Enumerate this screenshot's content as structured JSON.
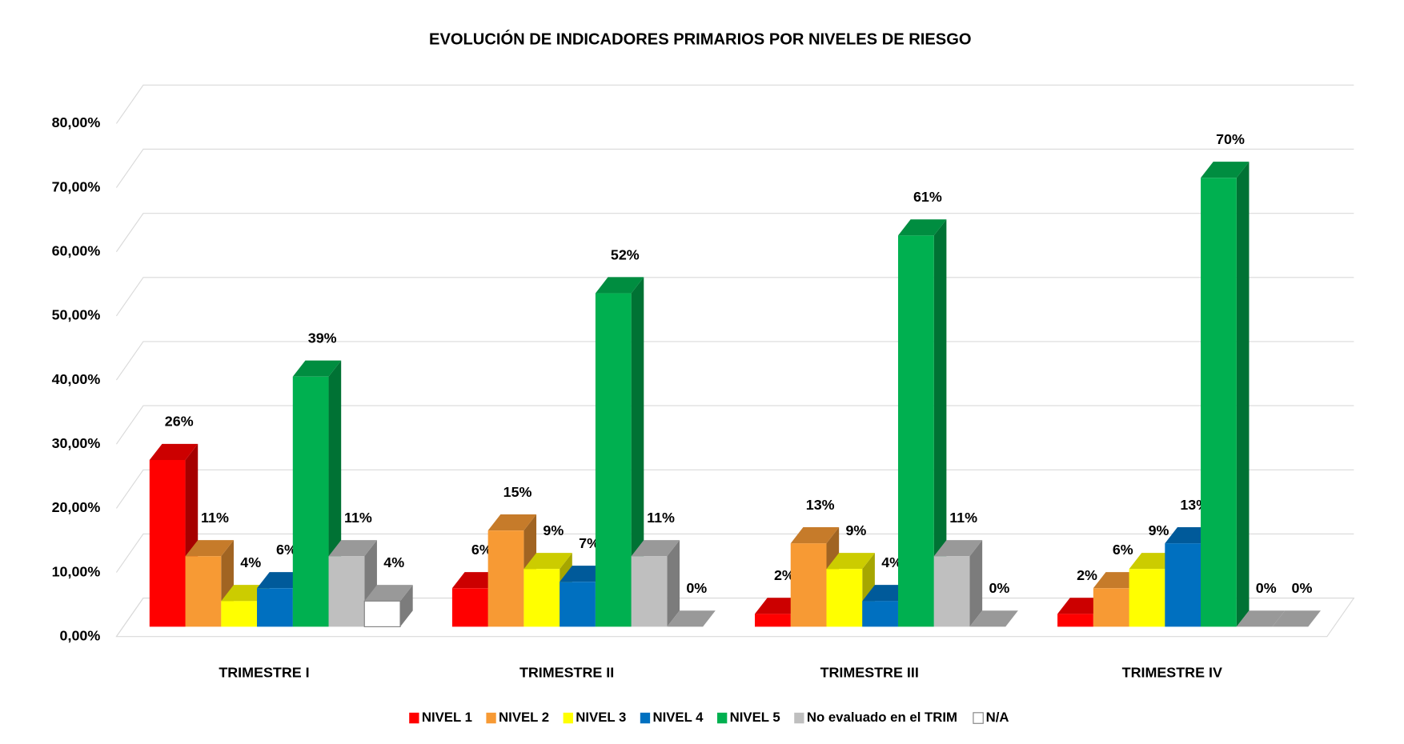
{
  "chart_data": {
    "type": "bar3d",
    "title": "EVOLUCIÓN DE INDICADORES PRIMARIOS POR NIVELES DE RIESGO",
    "categories": [
      "TRIMESTRE I",
      "TRIMESTRE II",
      "TRIMESTRE III",
      "TRIMESTRE IV"
    ],
    "series": [
      {
        "name": "NIVEL 1",
        "color": "#ff0000",
        "values": [
          26,
          6,
          2,
          2
        ],
        "value_labels": [
          "26%",
          "6%",
          "2%",
          "2%"
        ]
      },
      {
        "name": "NIVEL 2",
        "color": "#f79a34",
        "values": [
          11,
          15,
          13,
          6
        ],
        "value_labels": [
          "11%",
          "15%",
          "13%",
          "6%"
        ]
      },
      {
        "name": "NIVEL 3",
        "color": "#ffff00",
        "values": [
          4,
          9,
          9,
          9
        ],
        "value_labels": [
          "4%",
          "9%",
          "9%",
          "9%"
        ]
      },
      {
        "name": "NIVEL 4",
        "color": "#0070c0",
        "values": [
          6,
          7,
          4,
          13
        ],
        "value_labels": [
          "6%",
          "7%",
          "4%",
          "13%"
        ]
      },
      {
        "name": "NIVEL 5",
        "color": "#00b050",
        "values": [
          39,
          52,
          61,
          70
        ],
        "value_labels": [
          "39%",
          "52%",
          "61%",
          "70%"
        ]
      },
      {
        "name": "No evaluado en el TRIM",
        "color": "#bfbfbf",
        "values": [
          11,
          11,
          11,
          0
        ],
        "value_labels": [
          "11%",
          "11%",
          "11%",
          "0%"
        ]
      },
      {
        "name": "N/A",
        "color": "#ffffff",
        "values": [
          4,
          0,
          0,
          0
        ],
        "value_labels": [
          "4%",
          "0%",
          "0%",
          "0%"
        ]
      }
    ],
    "ylim": [
      0,
      80
    ],
    "yticks": [
      {
        "value": 0,
        "label": "0,00%"
      },
      {
        "value": 10,
        "label": "10,00%"
      },
      {
        "value": 20,
        "label": "20,00%"
      },
      {
        "value": 30,
        "label": "30,00%"
      },
      {
        "value": 40,
        "label": "40,00%"
      },
      {
        "value": 50,
        "label": "50,00%"
      },
      {
        "value": 60,
        "label": "60,00%"
      },
      {
        "value": 70,
        "label": "70,00%"
      },
      {
        "value": 80,
        "label": "80,00%"
      }
    ],
    "grid": true,
    "legend": "bottom"
  }
}
